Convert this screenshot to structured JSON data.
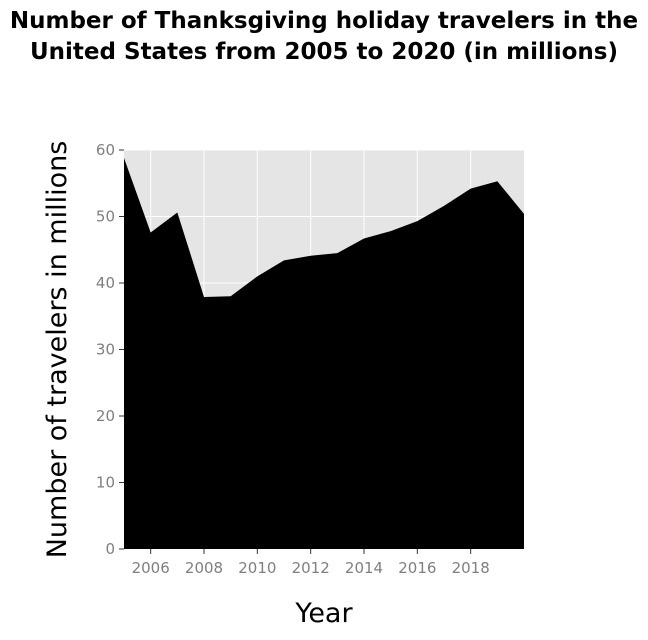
{
  "chart_data": {
    "type": "area",
    "title": "Number of Thanksgiving holiday travelers in the United States from 2005 to 2020 (in millions)",
    "xlabel": "Year",
    "ylabel": "Number of travelers in millions",
    "x": [
      2005,
      2006,
      2007,
      2008,
      2009,
      2010,
      2011,
      2012,
      2013,
      2014,
      2015,
      2016,
      2017,
      2018,
      2019,
      2020
    ],
    "series": [
      {
        "values": [
          58.8,
          47.6,
          50.6,
          37.9,
          38.0,
          41.0,
          43.4,
          44.1,
          44.5,
          46.7,
          47.8,
          49.3,
          51.6,
          54.2,
          55.3,
          50.4
        ]
      }
    ],
    "xlim": [
      2005,
      2020
    ],
    "ylim": [
      0,
      60
    ],
    "xticks": [
      2006,
      2008,
      2010,
      2012,
      2014,
      2016,
      2018
    ],
    "yticks": [
      0,
      10,
      20,
      30,
      40,
      50,
      60
    ],
    "grid": true,
    "fill_color": "#000000",
    "plot_background": "#e5e5e5",
    "gridline_color": "#ffffff",
    "tick_label_color": "#7f7f7f"
  }
}
